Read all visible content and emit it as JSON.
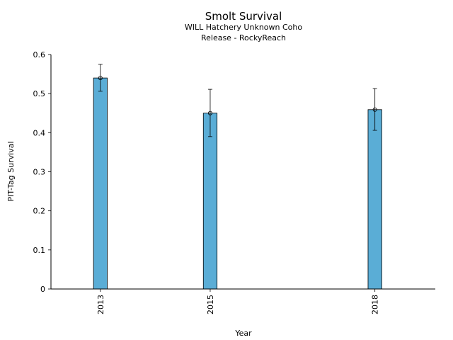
{
  "chart_data": {
    "type": "bar",
    "title": "Smolt Survival",
    "subtitle_lines": [
      "WILL Hatchery Unknown Coho",
      "Release - RockyReach"
    ],
    "xlabel": "Year",
    "ylabel": "PIT-Tag Survival",
    "x": [
      2013,
      2015,
      2018
    ],
    "categories": [
      "2013",
      "2015",
      "2018"
    ],
    "values": [
      0.54,
      0.45,
      0.459
    ],
    "error_low": [
      0.506,
      0.39,
      0.406
    ],
    "error_high": [
      0.575,
      0.511,
      0.513
    ],
    "ylim": [
      0,
      0.6
    ],
    "yticks": [
      0,
      0.1,
      0.2,
      0.3,
      0.4,
      0.5,
      0.6
    ],
    "ytick_labels": [
      "0",
      "0.1",
      "0.2",
      "0.3",
      "0.4",
      "0.5",
      "0.6"
    ],
    "grid": false,
    "bar_color": "#5aadd6",
    "edge_color": "#000000"
  }
}
